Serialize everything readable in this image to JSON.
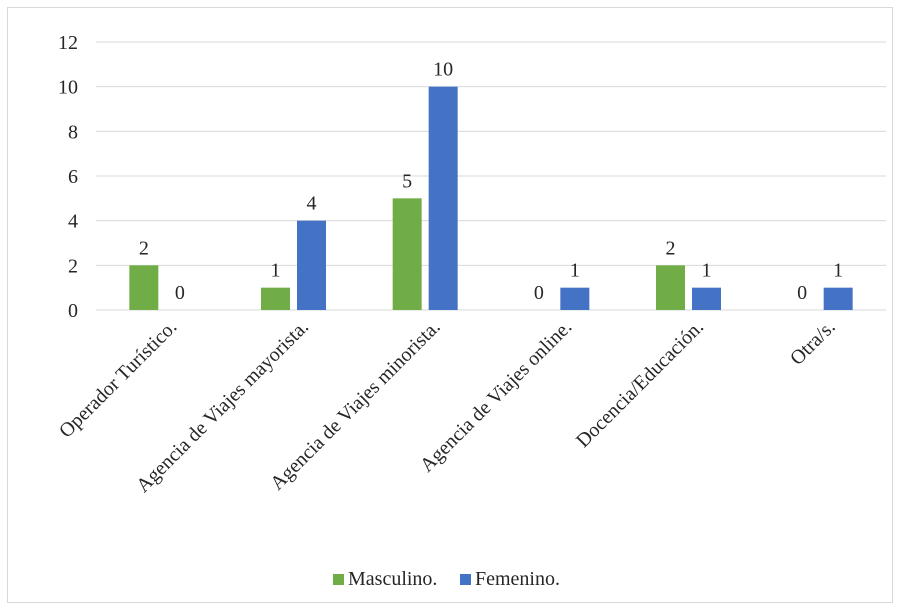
{
  "chart_data": {
    "type": "bar",
    "categories": [
      "Operador Turístico.",
      "Agencia de Viajes mayorista.",
      "Agencia de Viajes minorista.",
      "Agencia de Viajes online.",
      "Docencia/Educación.",
      "Otra/s."
    ],
    "series": [
      {
        "name": "Masculino.",
        "values": [
          2,
          1,
          5,
          0,
          2,
          0
        ],
        "color": "#70ad47"
      },
      {
        "name": "Femenino.",
        "values": [
          0,
          4,
          10,
          1,
          1,
          1
        ],
        "color": "#4472c4"
      }
    ],
    "yticks": [
      "0",
      "2",
      "4",
      "6",
      "8",
      "10",
      "12"
    ],
    "ylim": [
      0,
      12
    ],
    "grid": true,
    "legend": "bottom",
    "data_labels": true,
    "title": "",
    "xlabel": "",
    "ylabel": ""
  }
}
